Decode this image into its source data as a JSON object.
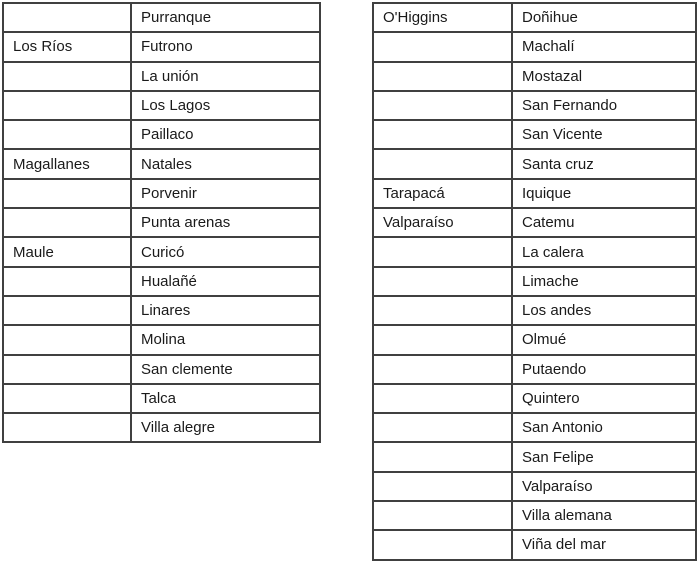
{
  "page": {
    "background_color": "#ffffff",
    "border_color": "#404040",
    "text_color": "#1a1a1a"
  },
  "tables": [
    {
      "name": "regions-communes-table-left",
      "rows": [
        {
          "region": "",
          "commune": "Purranque"
        },
        {
          "region": "Los Ríos",
          "commune": "Futrono"
        },
        {
          "region": "",
          "commune": "La unión"
        },
        {
          "region": "",
          "commune": "Los Lagos"
        },
        {
          "region": "",
          "commune": "Paillaco"
        },
        {
          "region": "Magallanes",
          "commune": "Natales"
        },
        {
          "region": "",
          "commune": "Porvenir"
        },
        {
          "region": "",
          "commune": "Punta arenas"
        },
        {
          "region": "Maule",
          "commune": "Curicó"
        },
        {
          "region": "",
          "commune": "Hualañé"
        },
        {
          "region": "",
          "commune": "Linares"
        },
        {
          "region": "",
          "commune": "Molina"
        },
        {
          "region": "",
          "commune": "San clemente"
        },
        {
          "region": "",
          "commune": "Talca"
        },
        {
          "region": "",
          "commune": "Villa alegre"
        }
      ]
    },
    {
      "name": "regions-communes-table-right",
      "rows": [
        {
          "region": "O'Higgins",
          "commune": "Doñihue"
        },
        {
          "region": "",
          "commune": "Machalí"
        },
        {
          "region": "",
          "commune": "Mostazal"
        },
        {
          "region": "",
          "commune": "San Fernando"
        },
        {
          "region": "",
          "commune": "San Vicente"
        },
        {
          "region": "",
          "commune": "Santa cruz"
        },
        {
          "region": "Tarapacá",
          "commune": "Iquique"
        },
        {
          "region": "Valparaíso",
          "commune": "Catemu"
        },
        {
          "region": "",
          "commune": "La calera"
        },
        {
          "region": "",
          "commune": "Limache"
        },
        {
          "region": "",
          "commune": "Los andes"
        },
        {
          "region": "",
          "commune": "Olmué"
        },
        {
          "region": "",
          "commune": "Putaendo"
        },
        {
          "region": "",
          "commune": "Quintero"
        },
        {
          "region": "",
          "commune": "San Antonio"
        },
        {
          "region": "",
          "commune": "San Felipe"
        },
        {
          "region": "",
          "commune": "Valparaíso"
        },
        {
          "region": "",
          "commune": "Villa alemana"
        },
        {
          "region": "",
          "commune": "Viña del mar"
        }
      ]
    }
  ]
}
